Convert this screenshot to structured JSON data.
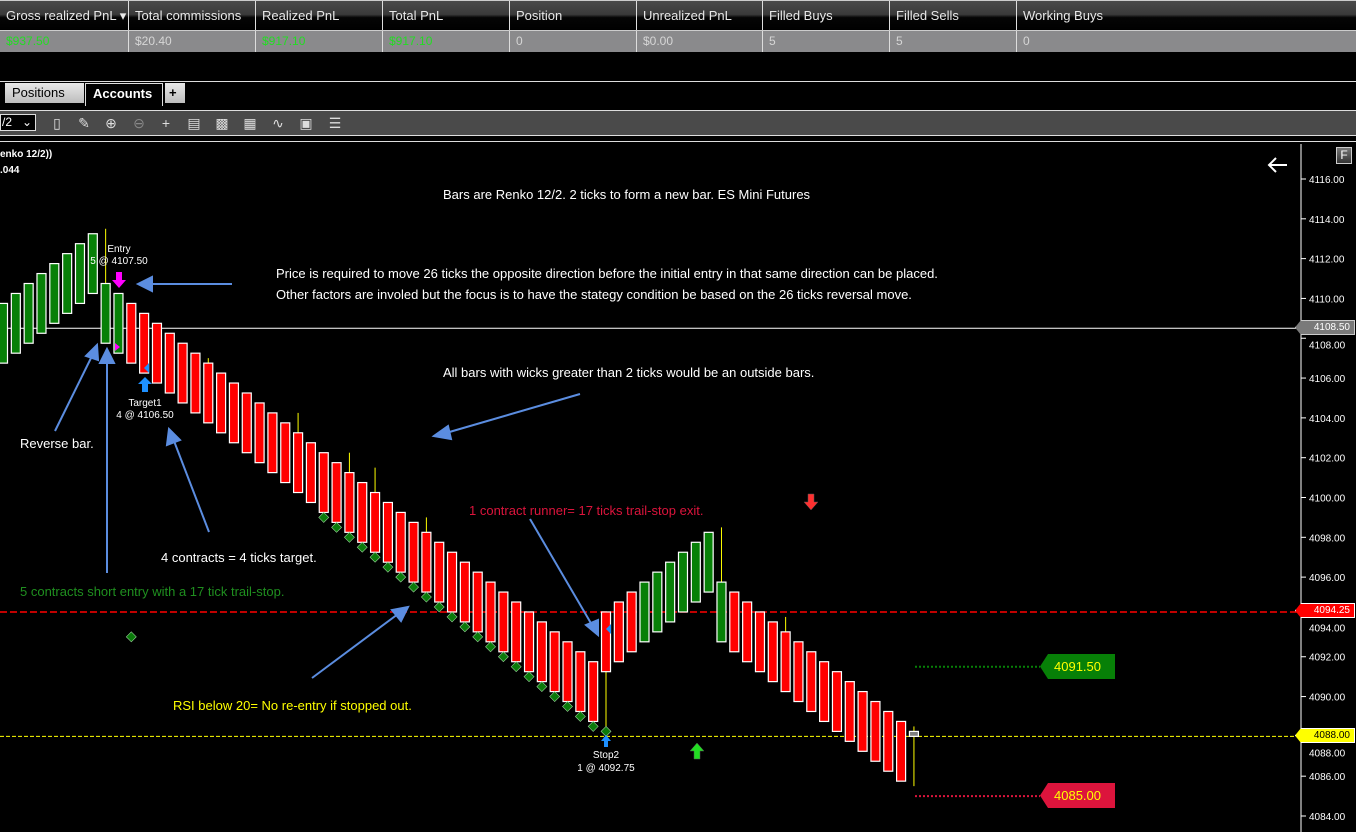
{
  "account_grid": {
    "columns": [
      "Gross realized PnL",
      "Total commissions",
      "Realized PnL",
      "Total PnL",
      "Position",
      "Unrealized PnL",
      "Filled Buys",
      "Filled Sells",
      "Working Buys"
    ],
    "sort_indicator": "▾",
    "row": [
      "$937.50",
      "$20.40",
      "$917.10",
      "$917.10",
      "0",
      "$0.00",
      "5",
      "5",
      "0"
    ],
    "positive_color": "#22dd22"
  },
  "tabs": [
    {
      "label": "Positions",
      "active": false
    },
    {
      "label": "Accounts",
      "active": true
    },
    {
      "label": "+",
      "active": false
    }
  ],
  "toolbar": {
    "bar_type_value": "/2",
    "icons": [
      "bar-type-icon",
      "drawing-pencil-icon",
      "zoom-in-icon",
      "zoom-out-icon",
      "crosshair-icon",
      "data-box-icon",
      "chart-trader-icon",
      "indicators-icon",
      "strategies-icon",
      "properties-icon",
      "object-list-icon"
    ]
  },
  "chart": {
    "instrument_label": "enko 12/2))",
    "indicator_value": ".044",
    "axis_ticks": [
      "4116.00",
      "4114.00",
      "4112.00",
      "4110.00",
      "4108.00",
      "4106.00",
      "4104.00",
      "4102.00",
      "4100.00",
      "4098.00",
      "4096.00",
      "4094.00",
      "4092.00",
      "4090.00",
      "4088.00",
      "4086.00",
      "4084.00"
    ],
    "price_markers": {
      "last_price": "4108.50",
      "stop_line": "4094.25",
      "current_price": "4088.00"
    },
    "order_lines": {
      "target": "4091.50",
      "stop": "4085.00"
    },
    "fractal_button": "F",
    "annotations": {
      "title": "Bars are Renko 12/2. 2 ticks to form a new bar. ES Mini Futures",
      "reversal_line1": "Price is required to move 26 ticks the opposite direction before the initial entry in that same direction can be placed.",
      "reversal_line2": "Other factors are involed but the focus is to have the stategy condition be based on the 26 ticks reversal move.",
      "outside_bars": "All bars with wicks greater than 2 ticks would be an outside bars.",
      "reverse_bar": "Reverse bar.",
      "target_note": "4 contracts = 4 ticks target.",
      "entry_note": "5 contracts short entry with a 17 tick trail-stop.",
      "runner_note": "1 contract runner= 17 ticks trail-stop exit.",
      "rsi_note": "RSI below 20= No re-entry if stopped out."
    },
    "executions": {
      "entry_name": "Entry",
      "entry_fill": "5 @ 4107.50",
      "target_name": "Target1",
      "target_fill": "4 @ 4106.50",
      "stop_name": "Stop2",
      "stop_fill": "1 @ 4092.75"
    },
    "colors": {
      "up_bar": "#078007",
      "down_bar": "#ff0000",
      "wick": "#ffff00",
      "current_bar": "#808080",
      "annotation_arrow": "#5b8de0",
      "trail_stop": "#0a7a0a",
      "runner_text": "#dc143c",
      "entry_text": "#1f8f1f",
      "rsi_text": "#ffff00"
    }
  },
  "chart_data": {
    "type": "renko-candlestick",
    "ylim": [
      4083.5,
      4117
    ],
    "bar_fields": [
      "open",
      "high",
      "low",
      "close"
    ],
    "bars": [
      [
        4106.75,
        4109.75,
        4106.75,
        4109.75
      ],
      [
        4107.25,
        4110.25,
        4107.25,
        4110.25
      ],
      [
        4107.75,
        4110.75,
        4107.75,
        4110.75
      ],
      [
        4108.25,
        4111.25,
        4108.25,
        4111.25
      ],
      [
        4108.75,
        4111.75,
        4108.75,
        4111.75
      ],
      [
        4109.25,
        4112.25,
        4109.25,
        4112.25
      ],
      [
        4109.75,
        4112.75,
        4109.75,
        4112.75
      ],
      [
        4110.25,
        4113.25,
        4110.25,
        4113.25
      ],
      [
        4107.75,
        4113.5,
        4107.75,
        4110.75
      ],
      [
        4107.25,
        4110.25,
        4107.25,
        4110.25
      ],
      [
        4109.75,
        4109.75,
        4106.75,
        4106.75
      ],
      [
        4109.25,
        4109.25,
        4106.25,
        4106.25
      ],
      [
        4108.75,
        4108.75,
        4105.75,
        4105.75
      ],
      [
        4108.25,
        4108.25,
        4105.25,
        4105.25
      ],
      [
        4107.75,
        4107.75,
        4104.75,
        4104.75
      ],
      [
        4107.25,
        4107.25,
        4104.25,
        4104.25
      ],
      [
        4106.75,
        4107.0,
        4103.75,
        4103.75
      ],
      [
        4106.25,
        4106.25,
        4103.25,
        4103.25
      ],
      [
        4105.75,
        4105.75,
        4102.75,
        4102.75
      ],
      [
        4105.25,
        4105.25,
        4102.25,
        4102.25
      ],
      [
        4104.75,
        4104.75,
        4101.75,
        4101.75
      ],
      [
        4104.25,
        4104.25,
        4101.25,
        4101.25
      ],
      [
        4103.75,
        4103.75,
        4100.75,
        4100.75
      ],
      [
        4103.25,
        4104.25,
        4100.25,
        4100.25
      ],
      [
        4102.75,
        4102.75,
        4099.75,
        4099.75
      ],
      [
        4102.25,
        4102.25,
        4099.25,
        4099.25
      ],
      [
        4101.75,
        4101.75,
        4098.75,
        4098.75
      ],
      [
        4101.25,
        4102.25,
        4098.25,
        4098.25
      ],
      [
        4100.75,
        4100.75,
        4097.75,
        4097.75
      ],
      [
        4100.25,
        4101.5,
        4097.25,
        4097.25
      ],
      [
        4099.75,
        4099.75,
        4096.75,
        4096.75
      ],
      [
        4099.25,
        4099.25,
        4096.25,
        4096.25
      ],
      [
        4098.75,
        4098.75,
        4095.75,
        4095.75
      ],
      [
        4098.25,
        4099.0,
        4095.25,
        4095.25
      ],
      [
        4097.75,
        4097.75,
        4094.75,
        4094.75
      ],
      [
        4097.25,
        4097.25,
        4094.25,
        4094.25
      ],
      [
        4096.75,
        4096.75,
        4093.75,
        4093.75
      ],
      [
        4096.25,
        4096.25,
        4093.25,
        4093.25
      ],
      [
        4095.75,
        4095.75,
        4092.75,
        4092.75
      ],
      [
        4095.25,
        4095.25,
        4092.25,
        4092.25
      ],
      [
        4094.75,
        4094.75,
        4091.75,
        4091.75
      ],
      [
        4094.25,
        4094.25,
        4091.25,
        4091.25
      ],
      [
        4093.75,
        4093.75,
        4090.75,
        4090.75
      ],
      [
        4093.25,
        4093.25,
        4090.25,
        4090.25
      ],
      [
        4092.75,
        4092.75,
        4089.75,
        4089.75
      ],
      [
        4092.25,
        4092.25,
        4089.25,
        4089.25
      ],
      [
        4091.75,
        4091.75,
        4088.75,
        4088.75
      ],
      [
        4094.25,
        4094.25,
        4088.25,
        4091.25
      ],
      [
        4094.75,
        4094.75,
        4091.75,
        4091.75
      ],
      [
        4095.25,
        4095.25,
        4092.25,
        4092.25
      ],
      [
        4092.75,
        4095.75,
        4092.75,
        4095.75
      ],
      [
        4093.25,
        4096.25,
        4093.25,
        4096.25
      ],
      [
        4093.75,
        4096.75,
        4093.75,
        4096.75
      ],
      [
        4094.25,
        4097.25,
        4094.25,
        4097.25
      ],
      [
        4094.75,
        4097.75,
        4094.75,
        4097.75
      ],
      [
        4095.25,
        4098.25,
        4095.25,
        4098.25
      ],
      [
        4092.75,
        4098.5,
        4092.75,
        4095.75
      ],
      [
        4095.25,
        4095.25,
        4092.25,
        4092.25
      ],
      [
        4094.75,
        4094.75,
        4091.75,
        4091.75
      ],
      [
        4094.25,
        4094.25,
        4091.25,
        4091.25
      ],
      [
        4093.75,
        4093.75,
        4090.75,
        4090.75
      ],
      [
        4093.25,
        4094.0,
        4090.25,
        4090.25
      ],
      [
        4092.75,
        4092.75,
        4089.75,
        4089.75
      ],
      [
        4092.25,
        4092.25,
        4089.25,
        4089.25
      ],
      [
        4091.75,
        4091.75,
        4088.75,
        4088.75
      ],
      [
        4091.25,
        4091.25,
        4088.25,
        4088.25
      ],
      [
        4090.75,
        4090.75,
        4087.75,
        4087.75
      ],
      [
        4090.25,
        4090.25,
        4087.25,
        4087.25
      ],
      [
        4089.75,
        4089.75,
        4086.75,
        4086.75
      ],
      [
        4089.25,
        4089.25,
        4086.25,
        4086.25
      ],
      [
        4088.75,
        4088.75,
        4085.75,
        4085.75
      ],
      [
        4088.25,
        4088.5,
        4085.5,
        4088.0
      ]
    ],
    "trail_stop_markers": [
      [
        10,
        4093
      ],
      [
        25,
        4099
      ],
      [
        26,
        4098.5
      ],
      [
        27,
        4098
      ],
      [
        28,
        4097.5
      ],
      [
        29,
        4097
      ],
      [
        30,
        4096.5
      ],
      [
        31,
        4096
      ],
      [
        32,
        4095.5
      ],
      [
        33,
        4095
      ],
      [
        34,
        4094.5
      ],
      [
        35,
        4094
      ],
      [
        36,
        4093.5
      ],
      [
        37,
        4093
      ],
      [
        38,
        4092.5
      ],
      [
        39,
        4092
      ],
      [
        40,
        4091.5
      ],
      [
        41,
        4091
      ],
      [
        42,
        4090.5
      ],
      [
        43,
        4090
      ],
      [
        44,
        4089.5
      ],
      [
        45,
        4089
      ],
      [
        46,
        4088.5
      ],
      [
        47,
        4088.25
      ]
    ],
    "horizontal_lines": {
      "last_price": 4108.5,
      "stop": 4094.25,
      "current": 4088.0,
      "target_order": 4091.5,
      "stop_order": 4085.0
    }
  }
}
